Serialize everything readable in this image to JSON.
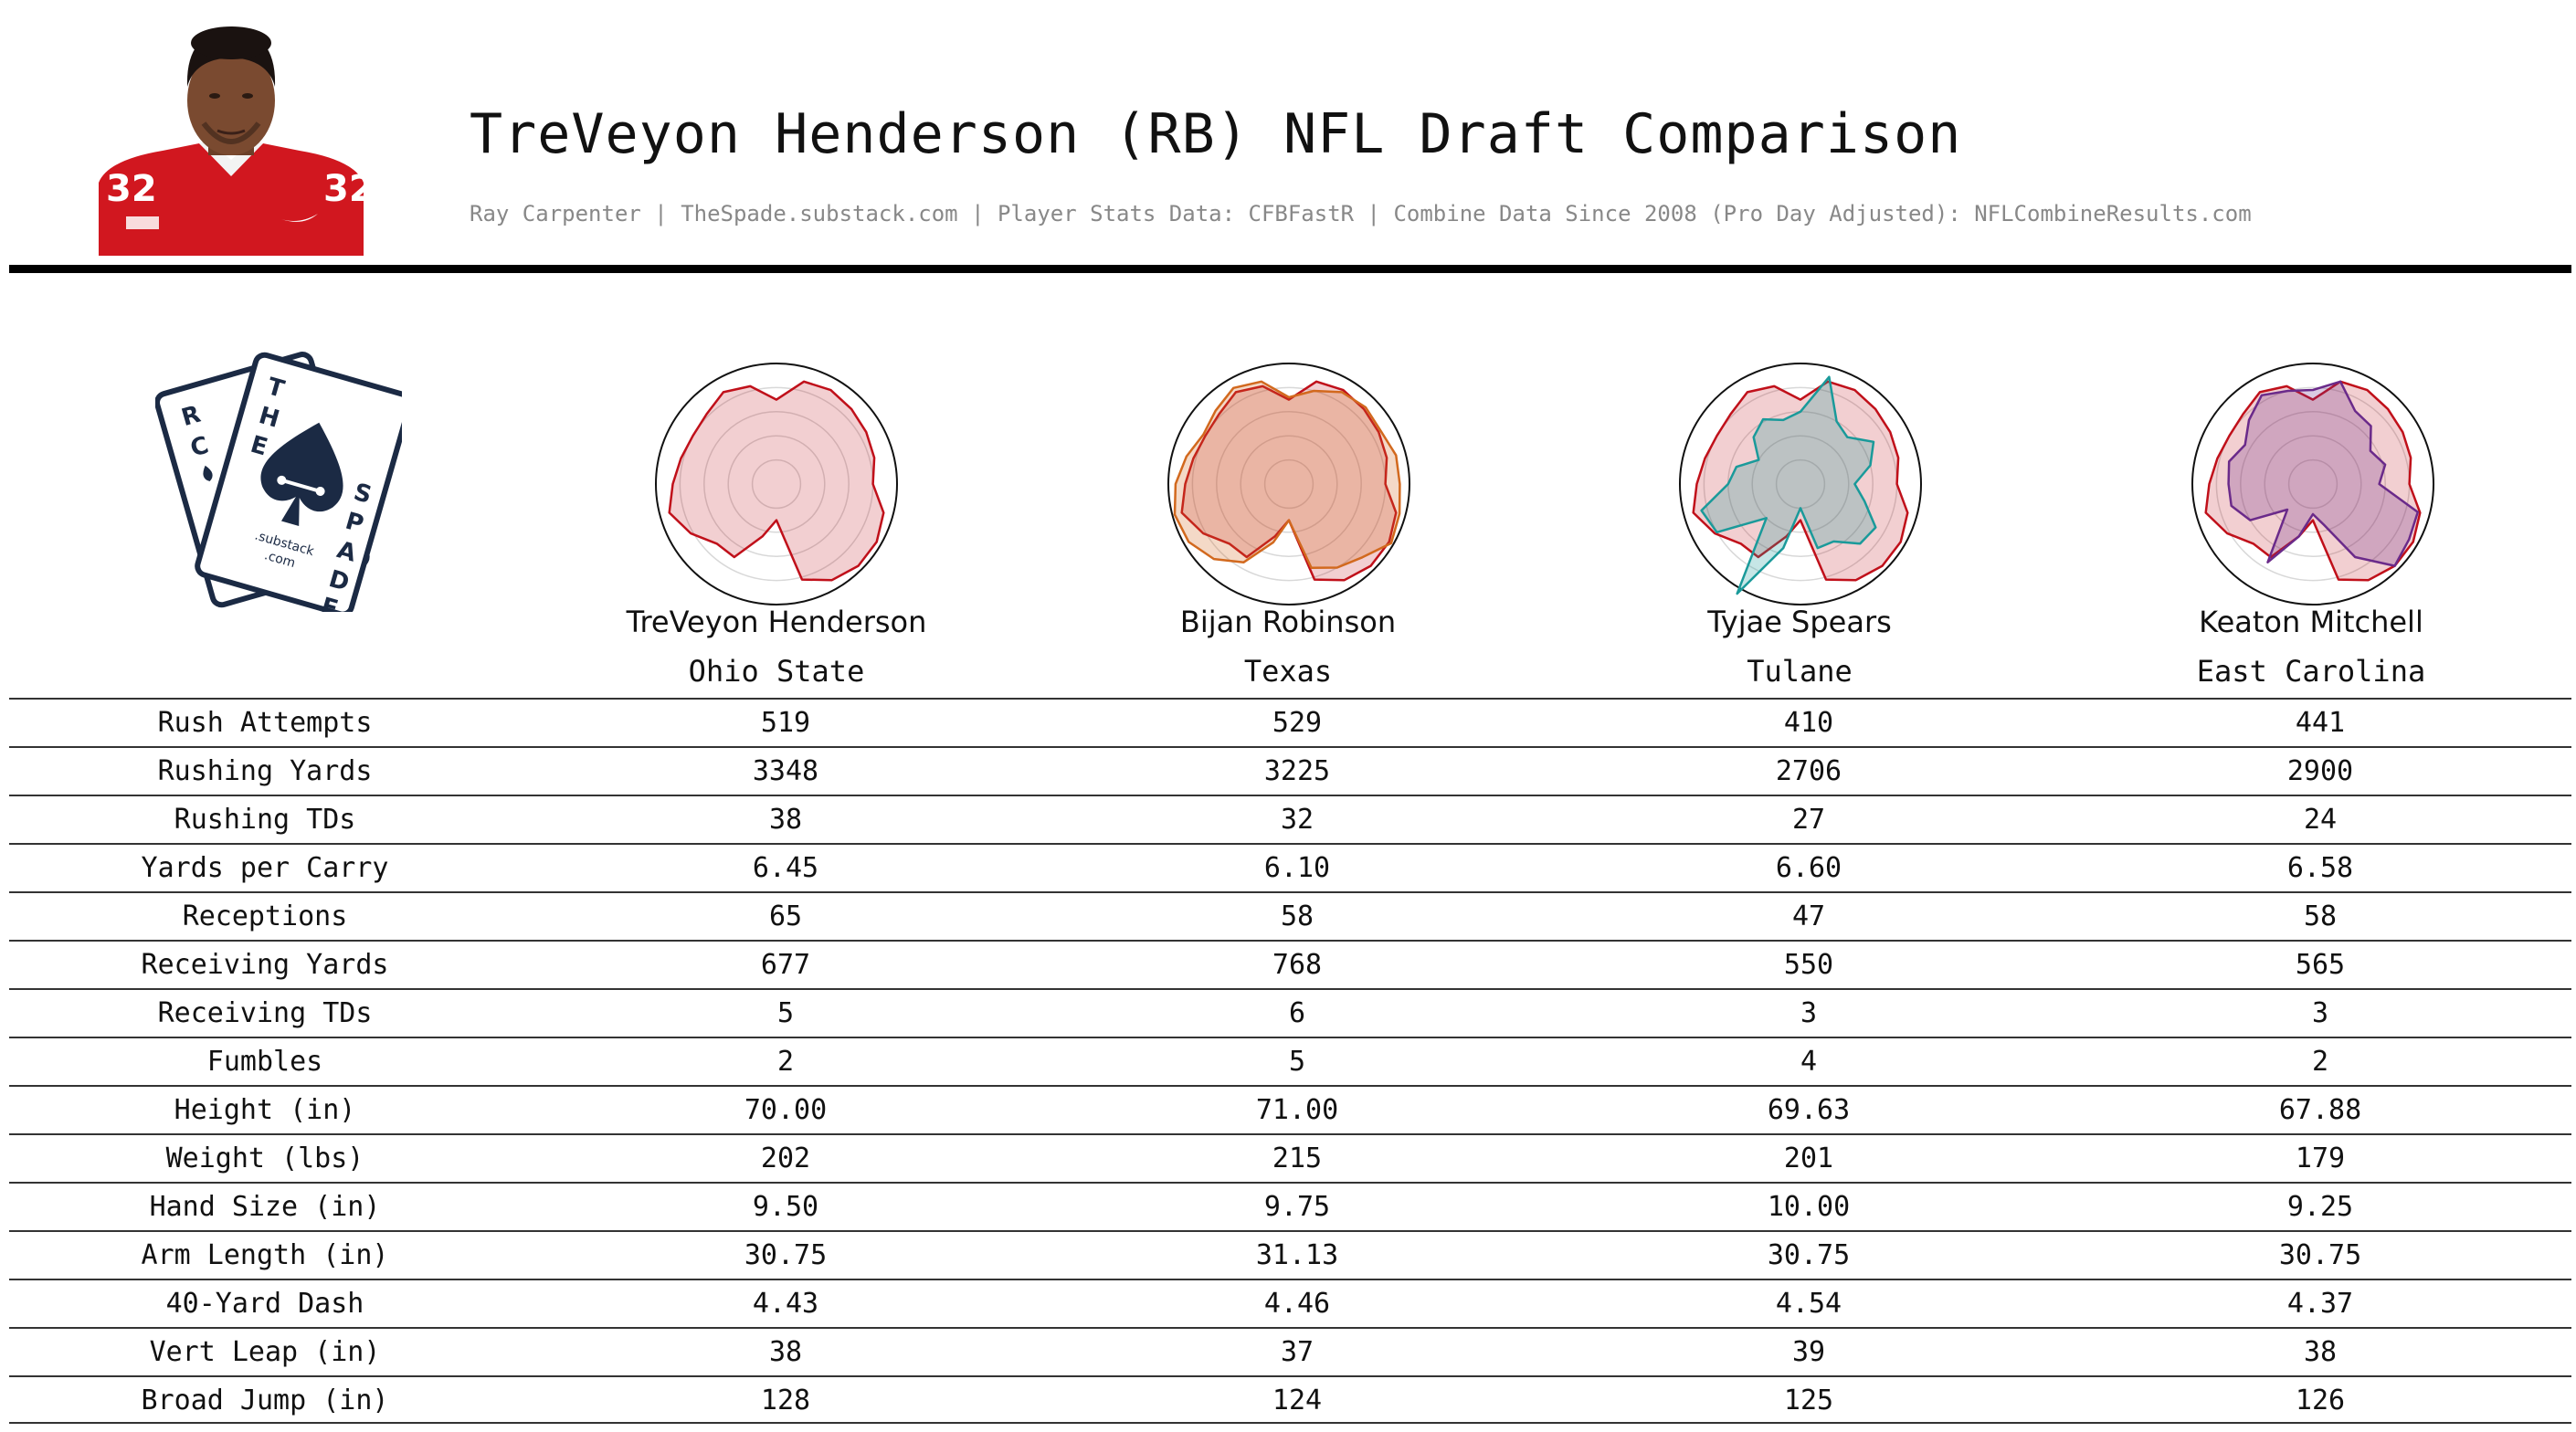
{
  "header": {
    "title": "TreVeyon Henderson (RB) NFL Draft Comparison",
    "subtitle": "Ray Carpenter | TheSpade.substack.com | Player Stats Data: CFBFastR | Combine Data Since 2008 (Pro Day Adjusted): NFLCombineResults.com"
  },
  "logo": {
    "card_letters_back": [
      "R",
      "C"
    ],
    "card_letters_front": [
      "T",
      "H",
      "E",
      "S",
      "P",
      "A",
      "D",
      "E"
    ],
    "substack_text": ".substack",
    "com_text": ".com"
  },
  "players": [
    {
      "name": "TreVeyon Henderson",
      "school": "Ohio State"
    },
    {
      "name": "Bijan Robinson",
      "school": "Texas"
    },
    {
      "name": "Tyjae Spears",
      "school": "Tulane"
    },
    {
      "name": "Keaton Mitchell",
      "school": "East Carolina"
    }
  ],
  "table": {
    "rows": [
      {
        "label": "Rush Attempts",
        "values": [
          "519",
          "529",
          "410",
          "441"
        ]
      },
      {
        "label": "Rushing Yards",
        "values": [
          "3348",
          "3225",
          "2706",
          "2900"
        ]
      },
      {
        "label": "Rushing TDs",
        "values": [
          "38",
          "32",
          "27",
          "24"
        ]
      },
      {
        "label": "Yards per Carry",
        "values": [
          "6.45",
          "6.10",
          "6.60",
          "6.58"
        ]
      },
      {
        "label": "Receptions",
        "values": [
          "65",
          "58",
          "47",
          "58"
        ]
      },
      {
        "label": "Receiving Yards",
        "values": [
          "677",
          "768",
          "550",
          "565"
        ]
      },
      {
        "label": "Receiving TDs",
        "values": [
          "5",
          "6",
          "3",
          "3"
        ]
      },
      {
        "label": "Fumbles",
        "values": [
          "2",
          "5",
          "4",
          "2"
        ]
      },
      {
        "label": "Height (in)",
        "values": [
          "70.00",
          "71.00",
          "69.63",
          "67.88"
        ]
      },
      {
        "label": "Weight (lbs)",
        "values": [
          "202",
          "215",
          "201",
          "179"
        ]
      },
      {
        "label": "Hand Size (in)",
        "values": [
          "9.50",
          "9.75",
          "10.00",
          "9.25"
        ]
      },
      {
        "label": "Arm Length (in)",
        "values": [
          "30.75",
          "31.13",
          "30.75",
          "30.75"
        ]
      },
      {
        "label": "40-Yard Dash",
        "values": [
          "4.43",
          "4.46",
          "4.54",
          "4.37"
        ]
      },
      {
        "label": "Vert Leap (in)",
        "values": [
          "38",
          "37",
          "39",
          "38"
        ]
      },
      {
        "label": "Broad Jump (in)",
        "values": [
          "128",
          "124",
          "125",
          "126"
        ]
      }
    ]
  },
  "chart_data": [
    {
      "type": "radar",
      "range": [
        0,
        1
      ],
      "series": [
        {
          "name": "TreVeyon Henderson",
          "color": "#c0101a",
          "values": [
            0.7,
            0.88,
            0.9,
            0.88,
            0.86,
            0.84,
            0.8,
            0.92,
            0.96,
            0.96,
            0.92,
            0.82,
            0.3,
            0.45,
            0.7,
            0.7,
            0.82,
            0.92,
            0.86,
            0.82,
            0.8,
            0.82,
            0.88,
            0.84
          ]
        }
      ]
    },
    {
      "type": "radar",
      "range": [
        0,
        1
      ],
      "series": [
        {
          "name": "TreVeyon Henderson",
          "color": "#c0101a",
          "values": [
            0.7,
            0.88,
            0.9,
            0.88,
            0.86,
            0.84,
            0.8,
            0.92,
            0.96,
            0.96,
            0.92,
            0.82,
            0.3,
            0.45,
            0.7,
            0.7,
            0.82,
            0.92,
            0.86,
            0.82,
            0.8,
            0.82,
            0.88,
            0.84
          ]
        },
        {
          "name": "Bijan Robinson",
          "color": "#d2691e",
          "values": [
            0.72,
            0.8,
            0.88,
            0.9,
            0.88,
            0.92,
            0.92,
            0.95,
            0.98,
            0.86,
            0.8,
            0.72,
            0.3,
            0.5,
            0.75,
            0.88,
            0.96,
            0.98,
            0.94,
            0.88,
            0.82,
            0.86,
            0.92,
            0.88
          ]
        }
      ]
    },
    {
      "type": "radar",
      "range": [
        0,
        1
      ],
      "series": [
        {
          "name": "TreVeyon Henderson",
          "color": "#c0101a",
          "values": [
            0.7,
            0.88,
            0.9,
            0.88,
            0.86,
            0.84,
            0.8,
            0.92,
            0.96,
            0.96,
            0.92,
            0.82,
            0.3,
            0.45,
            0.7,
            0.7,
            0.82,
            0.92,
            0.86,
            0.82,
            0.8,
            0.82,
            0.88,
            0.84
          ]
        },
        {
          "name": "Tyjae Spears",
          "color": "#1a9a9a",
          "values": [
            0.6,
            0.92,
            0.6,
            0.55,
            0.7,
            0.6,
            0.45,
            0.55,
            0.72,
            0.7,
            0.55,
            0.55,
            0.2,
            0.55,
            1.05,
            0.4,
            0.8,
            0.85,
            0.6,
            0.55,
            0.4,
            0.55,
            0.62,
            0.55
          ]
        }
      ]
    },
    {
      "type": "radar",
      "range": [
        0,
        1
      ],
      "series": [
        {
          "name": "TreVeyon Henderson",
          "color": "#c0101a",
          "values": [
            0.7,
            0.88,
            0.9,
            0.88,
            0.86,
            0.84,
            0.8,
            0.92,
            0.96,
            0.96,
            0.92,
            0.82,
            0.3,
            0.45,
            0.7,
            0.7,
            0.82,
            0.92,
            0.86,
            0.82,
            0.8,
            0.82,
            0.88,
            0.84
          ]
        },
        {
          "name": "Keaton Mitchell",
          "color": "#6a2a8a",
          "values": [
            0.78,
            0.88,
            0.7,
            0.68,
            0.55,
            0.62,
            0.55,
            0.9,
            0.92,
            0.96,
            0.7,
            0.35,
            0.25,
            0.45,
            0.75,
            0.3,
            0.6,
            0.7,
            0.7,
            0.72,
            0.65,
            0.75,
            0.85,
            0.8
          ]
        }
      ]
    }
  ]
}
